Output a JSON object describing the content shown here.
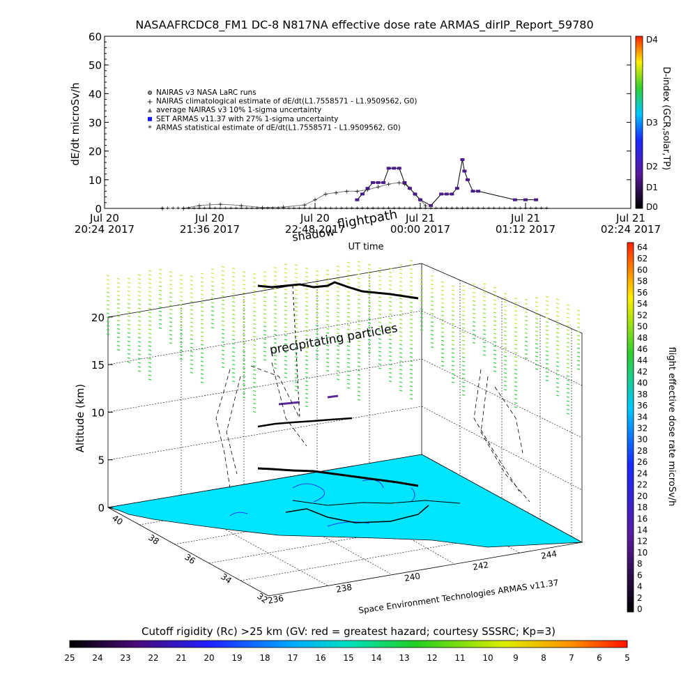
{
  "chart_data": [
    {
      "type": "line",
      "title": "NASAAFRCDC8_FM1 DC-8    N817NA effective dose rate ARMAS_dirIP_Report_59780",
      "ylabel": "dE/dt microSv/h",
      "xlabel": "UT time",
      "ylim": [
        0,
        60
      ],
      "yticks": [
        "0",
        "10",
        "20",
        "30",
        "40",
        "50",
        "60"
      ],
      "xticks": [
        {
          "line1": "Jul 20",
          "line2": "20:24 2017"
        },
        {
          "line1": "Jul 20",
          "line2": "21:36 2017"
        },
        {
          "line1": "Jul 20",
          "line2": "22:48 2017"
        },
        {
          "line1": "Jul 21",
          "line2": "00:00 2017"
        },
        {
          "line1": "Jul 21",
          "line2": "01:12 2017"
        },
        {
          "line1": "Jul 21",
          "line2": "02:24 2017"
        }
      ],
      "legend": [
        {
          "symbol": "circle",
          "label": "NAIRAS v3 NASA LaRC runs"
        },
        {
          "symbol": "plus",
          "label": "NAIRAS climatological estimate of dE/dt(L1.7558571 - L1.9509562, G0)"
        },
        {
          "symbol": "triangle",
          "label": "average NAIRAS v3 10% 1-sigma uncertainty"
        },
        {
          "symbol": "square-blue",
          "label": "SET ARMAS v11.37 with 27% 1-sigma uncertainty"
        },
        {
          "symbol": "asterisk",
          "label": "ARMAS statistical estimate of dE/dt(L1.7558571 - L1.9509562, G0)"
        }
      ],
      "series": [
        {
          "name": "NAIRAS climatological estimate",
          "x": [
            0.55,
            0.75,
            0.9,
            1.1,
            1.3,
            1.5,
            1.7,
            1.9,
            2.0,
            2.1,
            2.2,
            2.3,
            2.4,
            2.5,
            2.6,
            2.7,
            2.8,
            2.85,
            2.9,
            2.95,
            3.0,
            3.05
          ],
          "y": [
            0,
            0,
            1,
            1.5,
            1,
            0.3,
            0.5,
            1.2,
            3,
            5,
            5.5,
            6,
            6,
            6.5,
            7.5,
            8.5,
            9,
            8.5,
            7,
            5,
            3,
            1
          ]
        },
        {
          "name": "SET ARMAS v11.37",
          "x": [
            2.4,
            2.45,
            2.5,
            2.55,
            2.6,
            2.65,
            2.7,
            2.75,
            2.8,
            2.85,
            2.9,
            2.95,
            3.0,
            3.1,
            3.2,
            3.25,
            3.3,
            3.35,
            3.4,
            3.42,
            3.45,
            3.5,
            3.55,
            3.9,
            4.0,
            4.1
          ],
          "y": [
            3,
            5,
            7,
            9,
            9,
            9,
            14,
            14,
            14,
            9,
            7,
            5,
            3,
            1,
            5,
            5,
            5,
            7,
            17,
            13,
            10,
            6,
            6,
            3,
            3,
            3
          ]
        }
      ],
      "right_colorbar": {
        "label": "D-index (GCR,solar,TP)",
        "ticks": [
          "D0",
          "D1",
          "D2",
          "D3",
          "D4"
        ]
      }
    },
    {
      "type": "scatter",
      "zlabel": "Altitude (km)",
      "zticks": [
        "0",
        "5",
        "10",
        "15",
        "20"
      ],
      "lat_ticks": [
        "40",
        "38",
        "36",
        "34",
        "32"
      ],
      "lon_ticks": [
        "236",
        "238",
        "240",
        "242",
        "244"
      ],
      "title_labels": [
        "shadow",
        "flightpath",
        "precipitating particles"
      ],
      "credit": "Space Environment Technologies ARMAS v11.37",
      "right_colorbar": {
        "label": "flight effective dose rate microSv/h",
        "ticks": [
          "0",
          "2",
          "4",
          "6",
          "8",
          "10",
          "12",
          "14",
          "16",
          "18",
          "20",
          "22",
          "24",
          "26",
          "28",
          "30",
          "32",
          "34",
          "36",
          "38",
          "40",
          "42",
          "44",
          "46",
          "48",
          "50",
          "52",
          "54",
          "56",
          "58",
          "60",
          "62",
          "64"
        ]
      },
      "bottom_colorbar": {
        "label": "Cutoff rigidity (Rc) >25 km (GV: red = greatest hazard; courtesy SSSRC; Kp=3)",
        "ticks": [
          "25",
          "24",
          "23",
          "22",
          "21",
          "20",
          "19",
          "18",
          "17",
          "16",
          "15",
          "14",
          "13",
          "12",
          "11",
          "10",
          "9",
          "8",
          "7",
          "6",
          "5"
        ]
      }
    }
  ],
  "colors": {
    "ground": "#00e5ff",
    "precip": "#7fdd3a",
    "armas": "#1a1aff",
    "nairas": "#444444"
  }
}
